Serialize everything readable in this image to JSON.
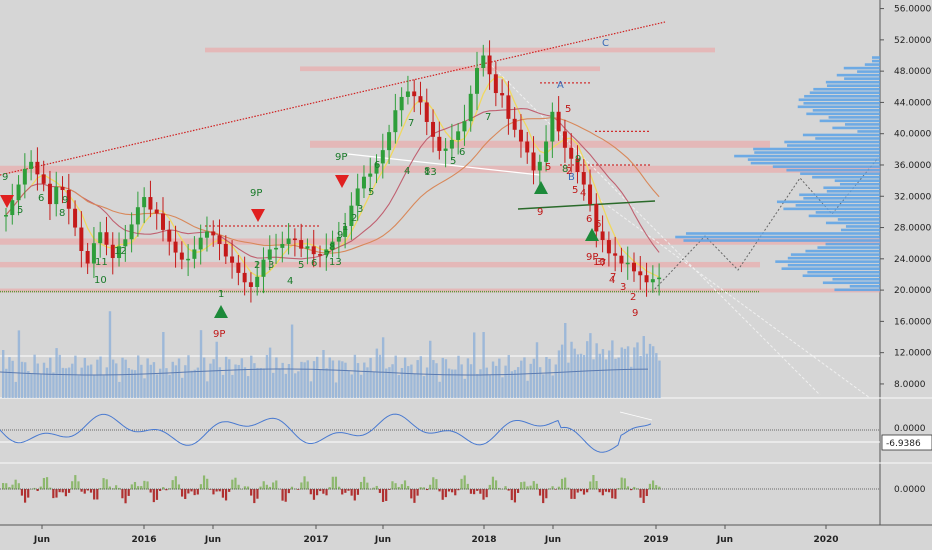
{
  "chart_data": {
    "type": "candlestick",
    "main_pane": {
      "price_axis": {
        "ticks": [
          "56.0000",
          "52.0000",
          "48.0000",
          "44.0000",
          "40.0000",
          "36.0000",
          "32.0000",
          "28.0000",
          "24.0000",
          "20.0000",
          "16.0000",
          "12.0000",
          "8.0000"
        ],
        "range": [
          6,
          57
        ]
      },
      "weekly_close": [
        29.6,
        31.5,
        33.5,
        35.5,
        36.4,
        34.8,
        33.6,
        31.0,
        33.2,
        32.8,
        30.4,
        28.0,
        25.0,
        23.4,
        26.0,
        27.4,
        25.8,
        24.1,
        25.6,
        26.5,
        28.4,
        30.6,
        31.9,
        30.3,
        29.8,
        27.7,
        26.2,
        24.8,
        23.9,
        24.0,
        25.2,
        26.7,
        27.5,
        27.0,
        25.9,
        24.3,
        23.5,
        22.2,
        21.0,
        20.4,
        21.7,
        23.9,
        25.2,
        25.4,
        25.9,
        26.6,
        26.4,
        25.3,
        25.6,
        24.6,
        24.5,
        25.2,
        26.2,
        26.8,
        28.2,
        30.8,
        33.0,
        34.5,
        34.9,
        36.2,
        37.9,
        40.2,
        43.0,
        44.7,
        45.4,
        44.8,
        44.0,
        41.5,
        39.6,
        37.8,
        38.1,
        39.2,
        40.3,
        41.6,
        45.1,
        48.4,
        50.0,
        47.6,
        45.2,
        44.9,
        41.9,
        40.5,
        39.0,
        37.6,
        35.3,
        36.4,
        39.0,
        42.8,
        40.3,
        38.2,
        36.8,
        35.1,
        33.5,
        31.0,
        27.5,
        26.4,
        24.7,
        24.4,
        23.4,
        23.5,
        22.4,
        21.9,
        21.0,
        21.4,
        21.6
      ],
      "volume_axis_ticks": [
        "12.0000",
        "8.0000"
      ],
      "annotations": {
        "wave_labels": [
          "A",
          "B",
          "C"
        ],
        "setup_labels": [
          "9",
          "9P",
          "9P",
          "9P",
          "13",
          "9",
          "13",
          "9P",
          "13"
        ],
        "small_counts": [
          "5",
          "6",
          "8",
          "9",
          "11",
          "12",
          "10",
          "1",
          "2",
          "3",
          "4",
          "5",
          "6",
          "7",
          "8",
          "9",
          "1",
          "2",
          "3",
          "5",
          "6",
          "7",
          "8",
          "4",
          "5",
          "6",
          "7",
          "8",
          "9"
        ],
        "red_counts": [
          "2",
          "3",
          "4",
          "5",
          "6",
          "7",
          "9",
          "5",
          "2",
          "3",
          "4",
          "5",
          "6",
          "7"
        ],
        "sell_arrows": 3,
        "buy_arrows": 3
      }
    },
    "oscillator_pane": {
      "ticks": [
        "0.0000"
      ],
      "current_label": "-6.9386"
    },
    "histogram_pane": {
      "ticks": [
        "0.0000"
      ]
    },
    "time_axis": {
      "ticks": [
        "Jun",
        "2016",
        "Jun",
        "2017",
        "Jun",
        "2018",
        "Jun",
        "2019",
        "Jun",
        "2020"
      ]
    },
    "colors": {
      "background": "#d6d6d6",
      "up": "#2e9e3a",
      "down": "#c41a1a",
      "ma_fast": "#f0d860",
      "ma_mid": "#d8885a",
      "ma_slow": "#c06070",
      "zone": "#f0a0a0",
      "volume_profile": "#5aa2e6",
      "volume": "#8fb0d8"
    }
  }
}
